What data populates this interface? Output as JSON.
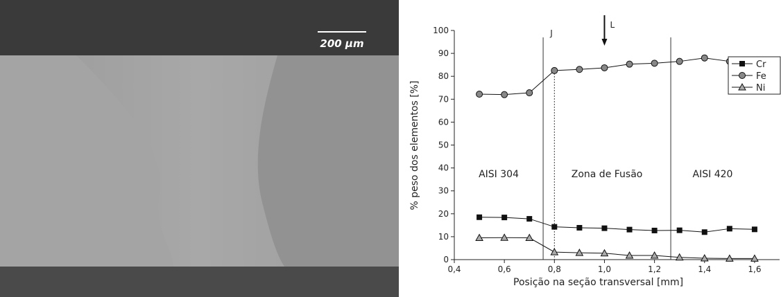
{
  "image": {
    "scale_label": "200 μm"
  },
  "chart_data": {
    "type": "line",
    "xlabel": "Posição na seção transversal [mm]",
    "ylabel": "% peso dos elementos [%]",
    "x": [
      0.5,
      0.6,
      0.7,
      0.8,
      0.9,
      1.0,
      1.1,
      1.2,
      1.3,
      1.4,
      1.5,
      1.6
    ],
    "series": [
      {
        "name": "Cr",
        "color": "#111111",
        "marker": "square",
        "values": [
          18.5,
          18.4,
          17.8,
          14.3,
          13.9,
          13.7,
          13.1,
          12.7,
          12.8,
          12.0,
          13.5,
          13.2
        ]
      },
      {
        "name": "Fe",
        "color": "#111111",
        "marker": "circle",
        "values": [
          72.2,
          72.0,
          72.8,
          82.5,
          83.0,
          83.7,
          85.3,
          85.7,
          86.5,
          88.0,
          86.5,
          86.7
        ]
      },
      {
        "name": "Ni",
        "color": "#111111",
        "marker": "triangle",
        "values": [
          9.5,
          9.6,
          9.5,
          3.3,
          3.0,
          2.8,
          1.8,
          1.8,
          1.0,
          0.6,
          0.5,
          0.5
        ]
      }
    ],
    "xlim": [
      0.4,
      1.7
    ],
    "ylim": [
      0,
      100
    ],
    "xticks": [
      {
        "value": 0.4,
        "label": "0,4"
      },
      {
        "value": 0.6,
        "label": "0,6"
      },
      {
        "value": 0.8,
        "label": "0,8"
      },
      {
        "value": 1.0,
        "label": "1,0"
      },
      {
        "value": 1.2,
        "label": "1,2"
      },
      {
        "value": 1.4,
        "label": "1,4"
      },
      {
        "value": 1.6,
        "label": "1,6"
      }
    ],
    "yticks": [
      0,
      10,
      20,
      30,
      40,
      50,
      60,
      70,
      80,
      90,
      100
    ],
    "reference_lines": [
      {
        "x": 0.755,
        "style": "solid"
      },
      {
        "x": 1.265,
        "style": "solid"
      },
      {
        "x": 0.8,
        "style": "dotted"
      }
    ],
    "annotations": [
      "J",
      "L"
    ],
    "regions": [
      "AISI 304",
      "Zona de Fusão",
      "AISI 420"
    ],
    "legend": "top-right"
  }
}
